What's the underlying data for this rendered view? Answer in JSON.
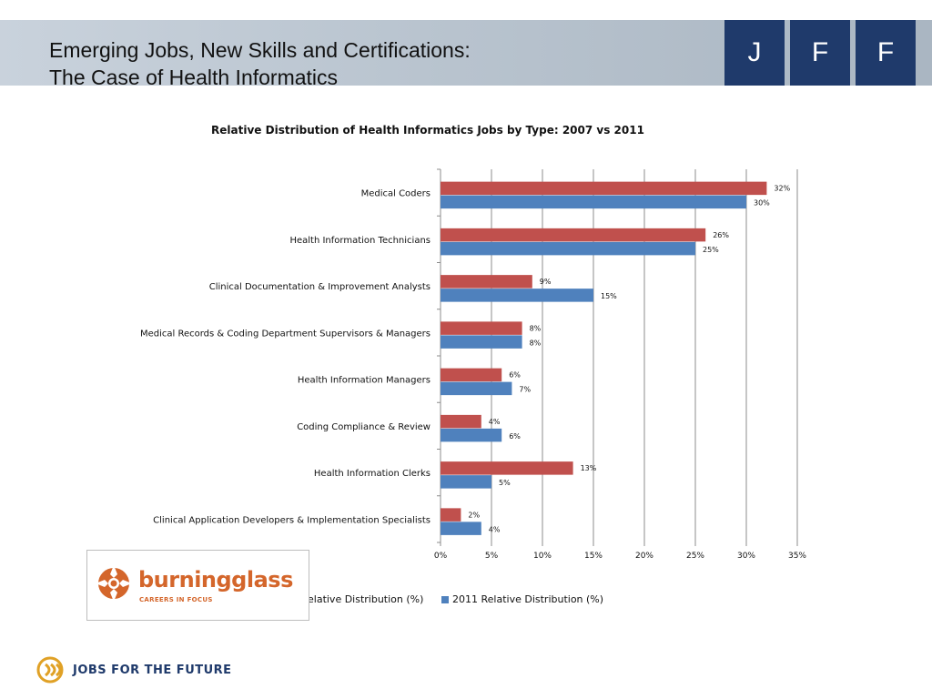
{
  "slide": {
    "title_line1": "Emerging Jobs, New Skills and Certifications:",
    "title_line2": "The Case of Health Informatics",
    "brand_letters": [
      "J",
      "F",
      "F"
    ],
    "footer_text": "JOBS FOR THE FUTURE",
    "logo_text": "burningglass",
    "logo_tagline": "CAREERS IN FOCUS"
  },
  "chart_data": {
    "type": "bar",
    "orientation": "horizontal",
    "title": "Relative Distribution of Health Informatics Jobs by Type: 2007 vs 2011",
    "categories": [
      "Medical Coders",
      "Health Information Technicians",
      "Clinical Documentation & Improvement Analysts",
      "Medical Records & Coding Department Supervisors & Managers",
      "Health Information Managers",
      "Coding Compliance & Review",
      "Health Information Clerks",
      "Clinical Application Developers & Implementation Specialists"
    ],
    "series": [
      {
        "name": "2007 Relative Distribution (%)",
        "legend_visible_text": "elative Distribution (%)",
        "color": "#c0504d",
        "values": [
          32,
          26,
          9,
          8,
          6,
          4,
          13,
          2
        ],
        "labels": [
          "32%",
          "26%",
          "9%",
          "8%",
          "6%",
          "4%",
          "13%",
          "2%"
        ]
      },
      {
        "name": "2011 Relative Distribution (%)",
        "legend_visible_text": "2011 Relative Distribution (%)",
        "color": "#4f81bd",
        "values": [
          30,
          25,
          15,
          8,
          7,
          6,
          5,
          4
        ],
        "labels": [
          "30%",
          "25%",
          "15%",
          "8%",
          "7%",
          "6%",
          "5%",
          "4%"
        ]
      }
    ],
    "x_ticks": [
      "0%",
      "5%",
      "10%",
      "15%",
      "20%",
      "25%",
      "30%",
      "35%"
    ],
    "xlim": [
      0,
      35
    ],
    "grid": true,
    "legend_position": "bottom"
  }
}
